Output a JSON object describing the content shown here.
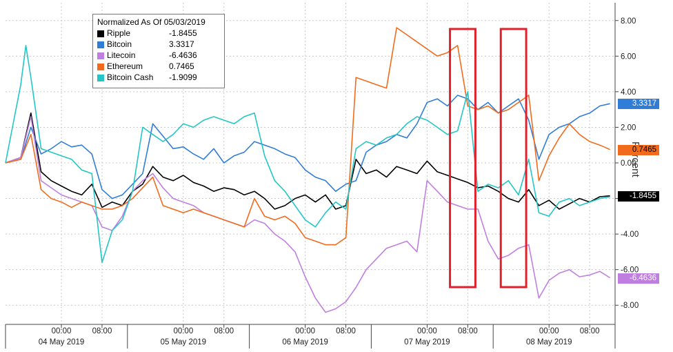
{
  "chart_data": {
    "type": "line",
    "title": "",
    "ylabel": "Percent",
    "ylim": [
      -9,
      9
    ],
    "y_ticks": [
      "8.00",
      "6.00",
      "4.00",
      "2.00",
      "0.00",
      "-2.00",
      "-4.00",
      "-6.00",
      "-8.00"
    ],
    "x_range_hours": [
      0,
      120
    ],
    "x_tick_hours": [
      11,
      19,
      35,
      43,
      59,
      67,
      83,
      91,
      107,
      115
    ],
    "x_ticks": [
      "00:00",
      "08:00",
      "00:00",
      "08:00",
      "00:00",
      "08:00",
      "00:00",
      "08:00",
      "00:00",
      "08:00"
    ],
    "day_labels": [
      "04 May 2019",
      "05 May 2019",
      "06 May 2019",
      "07 May 2019",
      "08 May 2019"
    ],
    "day_label_hours": [
      11,
      35,
      59,
      83,
      107
    ],
    "grid": true,
    "legend_position": "top-left",
    "legend_title": "Normalized As Of 05/03/2019",
    "series": [
      {
        "name": "Ripple",
        "last": "-1.8455",
        "color": "#000000",
        "x": [
          0,
          3,
          5,
          7,
          9,
          11,
          13,
          15,
          17,
          19,
          21,
          23,
          25,
          27,
          29,
          31,
          33,
          35,
          37,
          39,
          41,
          43,
          45,
          47,
          49,
          51,
          53,
          55,
          57,
          59,
          61,
          63,
          65,
          67,
          69,
          71,
          73,
          75,
          77,
          79,
          81,
          83,
          85,
          87,
          89,
          91,
          93,
          95,
          97,
          99,
          101,
          103,
          105,
          107,
          109,
          111,
          113,
          115,
          117,
          119
        ],
        "y": [
          0,
          0.3,
          2.8,
          -0.5,
          -1,
          -1.3,
          -1.6,
          -1.8,
          -1.2,
          -2.5,
          -2.2,
          -2.4,
          -1.6,
          -1.2,
          -0.2,
          -0.8,
          -1.0,
          -0.7,
          -1.1,
          -1.3,
          -1.6,
          -1.4,
          -1.5,
          -1.8,
          -1.6,
          -2.0,
          -2.6,
          -2.4,
          -2.0,
          -1.8,
          -2.2,
          -1.8,
          -2.6,
          -2.4,
          0.2,
          -0.6,
          -0.4,
          -0.8,
          -0.2,
          -0.4,
          -0.6,
          0.1,
          -0.5,
          -0.7,
          -0.9,
          -1.1,
          -1.4,
          -1.3,
          -1.6,
          -2.0,
          -2.2,
          -1.5,
          -2.4,
          -2.1,
          -2.6,
          -2.3,
          -2.0,
          -2.2,
          -1.9,
          -1.85
        ]
      },
      {
        "name": "Bitcoin",
        "last": "3.3317",
        "color": "#2f7dd6",
        "x": [
          0,
          3,
          5,
          7,
          9,
          11,
          13,
          15,
          17,
          19,
          21,
          23,
          25,
          27,
          29,
          31,
          33,
          35,
          37,
          39,
          41,
          43,
          45,
          47,
          49,
          51,
          53,
          55,
          57,
          59,
          61,
          63,
          65,
          67,
          69,
          71,
          73,
          75,
          77,
          79,
          81,
          83,
          85,
          87,
          89,
          91,
          93,
          95,
          97,
          99,
          101,
          103,
          105,
          107,
          109,
          111,
          113,
          115,
          117,
          119
        ],
        "y": [
          0,
          0.2,
          2.0,
          0.5,
          0.8,
          1.2,
          0.9,
          1.0,
          0.5,
          -1.5,
          -2.0,
          -1.8,
          -1.2,
          -0.6,
          2.2,
          1.5,
          0.8,
          0.9,
          0.5,
          0.2,
          0.8,
          0.0,
          0.4,
          0.6,
          1.2,
          1.0,
          0.8,
          0.5,
          0.3,
          -0.4,
          -0.8,
          -1.0,
          -1.6,
          -1.2,
          -1.0,
          0.6,
          1.0,
          1.2,
          1.6,
          1.4,
          2.2,
          3.4,
          3.6,
          3.2,
          3.8,
          3.6,
          3.0,
          3.4,
          2.8,
          3.2,
          3.6,
          2.4,
          0.2,
          1.6,
          2.0,
          2.2,
          2.6,
          2.8,
          3.2,
          3.33
        ]
      },
      {
        "name": "Litecoin",
        "last": "-6.4636",
        "color": "#c07fe0",
        "x": [
          0,
          3,
          5,
          7,
          9,
          11,
          13,
          15,
          17,
          19,
          21,
          23,
          25,
          27,
          29,
          31,
          33,
          35,
          37,
          39,
          41,
          43,
          45,
          47,
          49,
          51,
          53,
          55,
          57,
          59,
          61,
          63,
          65,
          67,
          69,
          71,
          73,
          75,
          77,
          79,
          81,
          83,
          85,
          87,
          89,
          91,
          93,
          95,
          97,
          99,
          101,
          103,
          105,
          107,
          109,
          111,
          113,
          115,
          117,
          119
        ],
        "y": [
          0,
          0.3,
          2.6,
          -1.0,
          -1.4,
          -1.8,
          -2.0,
          -2.2,
          -2.4,
          -3.6,
          -3.8,
          -3.0,
          -1.6,
          -1.0,
          -0.6,
          -1.4,
          -2.0,
          -2.2,
          -2.4,
          -2.8,
          -3.0,
          -3.2,
          -3.4,
          -3.6,
          -3.2,
          -3.4,
          -4.0,
          -4.4,
          -5.0,
          -6.4,
          -7.6,
          -8.4,
          -8.2,
          -7.8,
          -7.0,
          -6.0,
          -5.4,
          -4.8,
          -4.6,
          -4.4,
          -5.0,
          -1.0,
          -1.6,
          -2.2,
          -2.4,
          -2.6,
          -2.6,
          -4.4,
          -5.4,
          -5.2,
          -4.8,
          -4.6,
          -7.6,
          -6.6,
          -6.2,
          -6.0,
          -6.4,
          -6.3,
          -6.1,
          -6.46
        ]
      },
      {
        "name": "Ethereum",
        "last": "0.7465",
        "color": "#f26a1b",
        "x": [
          0,
          3,
          5,
          7,
          9,
          11,
          13,
          15,
          17,
          19,
          21,
          23,
          25,
          27,
          29,
          31,
          33,
          35,
          37,
          39,
          41,
          43,
          45,
          47,
          49,
          51,
          53,
          55,
          57,
          59,
          61,
          63,
          65,
          67,
          69,
          71,
          73,
          75,
          77,
          79,
          81,
          83,
          85,
          87,
          89,
          91,
          93,
          95,
          97,
          99,
          101,
          103,
          105,
          107,
          109,
          111,
          113,
          115,
          117,
          119
        ],
        "y": [
          0,
          0.2,
          1.6,
          -1.5,
          -2.0,
          -2.2,
          -2.5,
          -2.2,
          -2.4,
          -2.6,
          -2.6,
          -2.4,
          -2.0,
          -1.4,
          -0.8,
          -2.4,
          -2.6,
          -2.8,
          -2.6,
          -2.8,
          -3.0,
          -3.2,
          -3.4,
          -3.6,
          -2.0,
          -3.0,
          -3.2,
          -3.0,
          -3.4,
          -4.2,
          -4.4,
          -4.6,
          -4.6,
          -4.2,
          4.8,
          4.6,
          4.4,
          4.2,
          7.6,
          7.2,
          6.8,
          6.4,
          6.0,
          6.2,
          6.6,
          3.2,
          3.0,
          3.2,
          2.8,
          3.0,
          3.4,
          3.8,
          -1.0,
          0.4,
          1.4,
          2.2,
          1.6,
          1.2,
          1.0,
          0.75
        ]
      },
      {
        "name": "Bitcoin Cash",
        "last": "-1.9099",
        "color": "#22c6c6",
        "x": [
          0,
          3,
          4,
          5,
          7,
          9,
          11,
          13,
          15,
          17,
          19,
          21,
          23,
          25,
          27,
          29,
          31,
          33,
          35,
          37,
          39,
          41,
          43,
          45,
          47,
          49,
          51,
          53,
          55,
          57,
          59,
          61,
          63,
          65,
          67,
          69,
          71,
          73,
          75,
          77,
          79,
          81,
          83,
          85,
          87,
          89,
          91,
          93,
          95,
          97,
          99,
          101,
          103,
          105,
          107,
          109,
          111,
          113,
          115,
          117,
          119
        ],
        "y": [
          0,
          4.4,
          6.6,
          4.8,
          0.8,
          0.6,
          0.4,
          0.2,
          -0.4,
          -0.6,
          -5.6,
          -3.8,
          -3.2,
          -1.6,
          2.0,
          1.6,
          1.2,
          1.6,
          2.2,
          2.0,
          2.4,
          2.6,
          2.4,
          2.2,
          2.6,
          2.8,
          0.4,
          -1.0,
          -1.6,
          -2.4,
          -3.2,
          -3.6,
          -2.8,
          -2.2,
          -2.6,
          0.8,
          1.2,
          1.0,
          1.4,
          1.6,
          2.2,
          2.6,
          2.4,
          2.0,
          1.6,
          1.8,
          4.0,
          -1.6,
          -1.2,
          -1.4,
          -1.0,
          -1.8,
          0.2,
          -2.8,
          -3.0,
          -2.2,
          -2.0,
          -2.4,
          -2.2,
          -2.0,
          -1.91
        ]
      }
    ],
    "highlight_boxes_hours": [
      [
        87.5,
        92.5
      ],
      [
        97.5,
        102.5
      ]
    ]
  }
}
